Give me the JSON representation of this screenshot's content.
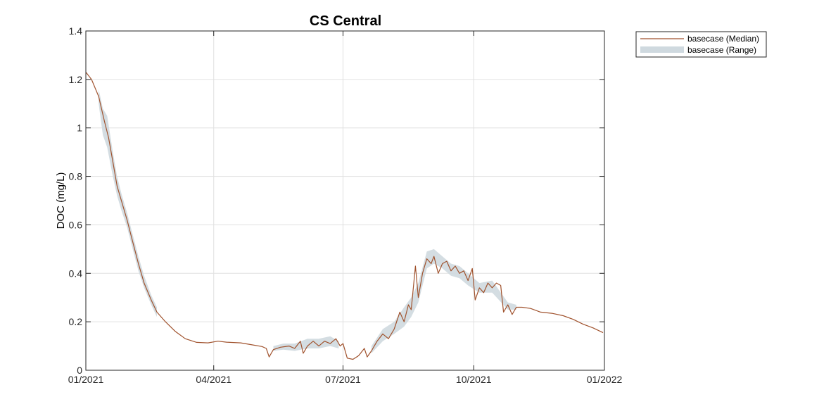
{
  "chart_data": {
    "type": "area",
    "title": "CS Central",
    "xlabel": "",
    "ylabel": "DOC (mg/L)",
    "xlim": [
      "2021-01-01",
      "2022-01-01"
    ],
    "ylim": [
      0,
      1.4
    ],
    "x_ticks": [
      "2021-01-01",
      "2021-04-01",
      "2021-07-01",
      "2021-10-01",
      "2022-01-01"
    ],
    "x_tick_labels": [
      "01/2021",
      "04/2021",
      "07/2021",
      "10/2021",
      "01/2022"
    ],
    "y_ticks": [
      0,
      0.2,
      0.4,
      0.6,
      0.8,
      1,
      1.2,
      1.4
    ],
    "y_tick_labels": [
      "0",
      "0.2",
      "0.4",
      "0.6",
      "0.8",
      "1",
      "1.2",
      "1.4"
    ],
    "grid": true,
    "legend_position": "outside-top-right",
    "colors": {
      "median": "#a0522d",
      "range": "#cfd9df",
      "grid": "#e0e0e0"
    },
    "series": [
      {
        "name": "basecase (Median)",
        "style": "line",
        "points": [
          [
            "2021-01-01",
            1.23
          ],
          [
            "2021-01-05",
            1.2
          ],
          [
            "2021-01-10",
            1.13
          ],
          [
            "2021-01-14",
            1.03
          ],
          [
            "2021-01-17",
            0.96
          ],
          [
            "2021-01-20",
            0.86
          ],
          [
            "2021-01-23",
            0.76
          ],
          [
            "2021-01-26",
            0.7
          ],
          [
            "2021-01-30",
            0.62
          ],
          [
            "2021-02-03",
            0.53
          ],
          [
            "2021-02-07",
            0.44
          ],
          [
            "2021-02-11",
            0.36
          ],
          [
            "2021-02-16",
            0.29
          ],
          [
            "2021-02-20",
            0.24
          ],
          [
            "2021-02-26",
            0.2
          ],
          [
            "2021-03-05",
            0.16
          ],
          [
            "2021-03-12",
            0.13
          ],
          [
            "2021-03-20",
            0.115
          ],
          [
            "2021-03-28",
            0.113
          ],
          [
            "2021-04-04",
            0.12
          ],
          [
            "2021-04-10",
            0.116
          ],
          [
            "2021-04-20",
            0.113
          ],
          [
            "2021-04-28",
            0.105
          ],
          [
            "2021-05-05",
            0.098
          ],
          [
            "2021-05-08",
            0.09
          ],
          [
            "2021-05-10",
            0.055
          ],
          [
            "2021-05-13",
            0.085
          ],
          [
            "2021-05-18",
            0.095
          ],
          [
            "2021-05-24",
            0.1
          ],
          [
            "2021-05-28",
            0.09
          ],
          [
            "2021-06-01",
            0.12
          ],
          [
            "2021-06-03",
            0.07
          ],
          [
            "2021-06-06",
            0.1
          ],
          [
            "2021-06-10",
            0.12
          ],
          [
            "2021-06-14",
            0.1
          ],
          [
            "2021-06-18",
            0.12
          ],
          [
            "2021-06-22",
            0.11
          ],
          [
            "2021-06-26",
            0.13
          ],
          [
            "2021-06-29",
            0.1
          ],
          [
            "2021-07-01",
            0.11
          ],
          [
            "2021-07-04",
            0.05
          ],
          [
            "2021-07-08",
            0.045
          ],
          [
            "2021-07-12",
            0.06
          ],
          [
            "2021-07-16",
            0.09
          ],
          [
            "2021-07-18",
            0.055
          ],
          [
            "2021-07-21",
            0.08
          ],
          [
            "2021-07-25",
            0.12
          ],
          [
            "2021-07-29",
            0.15
          ],
          [
            "2021-08-02",
            0.13
          ],
          [
            "2021-08-06",
            0.17
          ],
          [
            "2021-08-10",
            0.24
          ],
          [
            "2021-08-13",
            0.2
          ],
          [
            "2021-08-16",
            0.27
          ],
          [
            "2021-08-18",
            0.25
          ],
          [
            "2021-08-21",
            0.43
          ],
          [
            "2021-08-23",
            0.3
          ],
          [
            "2021-08-26",
            0.4
          ],
          [
            "2021-08-29",
            0.46
          ],
          [
            "2021-09-01",
            0.44
          ],
          [
            "2021-09-03",
            0.47
          ],
          [
            "2021-09-06",
            0.4
          ],
          [
            "2021-09-09",
            0.44
          ],
          [
            "2021-09-12",
            0.45
          ],
          [
            "2021-09-15",
            0.41
          ],
          [
            "2021-09-18",
            0.43
          ],
          [
            "2021-09-21",
            0.4
          ],
          [
            "2021-09-24",
            0.41
          ],
          [
            "2021-09-27",
            0.37
          ],
          [
            "2021-09-30",
            0.42
          ],
          [
            "2021-10-02",
            0.29
          ],
          [
            "2021-10-05",
            0.34
          ],
          [
            "2021-10-08",
            0.32
          ],
          [
            "2021-10-11",
            0.36
          ],
          [
            "2021-10-14",
            0.34
          ],
          [
            "2021-10-17",
            0.36
          ],
          [
            "2021-10-20",
            0.35
          ],
          [
            "2021-10-22",
            0.24
          ],
          [
            "2021-10-25",
            0.27
          ],
          [
            "2021-10-28",
            0.23
          ],
          [
            "2021-10-31",
            0.26
          ],
          [
            "2021-11-04",
            0.26
          ],
          [
            "2021-11-10",
            0.255
          ],
          [
            "2021-11-17",
            0.24
          ],
          [
            "2021-11-25",
            0.235
          ],
          [
            "2021-12-03",
            0.225
          ],
          [
            "2021-12-10",
            0.21
          ],
          [
            "2021-12-17",
            0.19
          ],
          [
            "2021-12-24",
            0.175
          ],
          [
            "2021-12-31",
            0.155
          ]
        ]
      },
      {
        "name": "basecase (Range)",
        "style": "band",
        "points": [
          [
            "2021-01-10",
            1.1,
            1.16
          ],
          [
            "2021-01-13",
            0.97,
            1.08
          ],
          [
            "2021-01-16",
            0.92,
            1.05
          ],
          [
            "2021-01-20",
            0.8,
            0.9
          ],
          [
            "2021-01-23",
            0.72,
            0.8
          ],
          [
            "2021-01-26",
            0.66,
            0.73
          ],
          [
            "2021-01-30",
            0.59,
            0.65
          ],
          [
            "2021-02-03",
            0.5,
            0.56
          ],
          [
            "2021-02-07",
            0.41,
            0.47
          ],
          [
            "2021-02-11",
            0.34,
            0.39
          ],
          [
            "2021-02-16",
            0.27,
            0.31
          ],
          [
            "2021-02-20",
            0.22,
            0.26
          ],
          [
            "2021-05-13",
            0.08,
            0.1
          ],
          [
            "2021-05-20",
            0.085,
            0.11
          ],
          [
            "2021-05-28",
            0.08,
            0.11
          ],
          [
            "2021-06-06",
            0.09,
            0.13
          ],
          [
            "2021-06-14",
            0.09,
            0.13
          ],
          [
            "2021-06-22",
            0.1,
            0.14
          ],
          [
            "2021-06-28",
            0.09,
            0.12
          ],
          [
            "2021-07-21",
            0.07,
            0.1
          ],
          [
            "2021-07-29",
            0.12,
            0.17
          ],
          [
            "2021-08-06",
            0.15,
            0.2
          ],
          [
            "2021-08-13",
            0.18,
            0.26
          ],
          [
            "2021-08-18",
            0.22,
            0.3
          ],
          [
            "2021-08-23",
            0.28,
            0.36
          ],
          [
            "2021-08-29",
            0.42,
            0.49
          ],
          [
            "2021-09-03",
            0.44,
            0.5
          ],
          [
            "2021-09-09",
            0.42,
            0.47
          ],
          [
            "2021-09-15",
            0.39,
            0.44
          ],
          [
            "2021-09-21",
            0.38,
            0.43
          ],
          [
            "2021-09-27",
            0.35,
            0.4
          ],
          [
            "2021-10-05",
            0.32,
            0.36
          ],
          [
            "2021-10-14",
            0.32,
            0.37
          ],
          [
            "2021-10-25",
            0.25,
            0.28
          ],
          [
            "2021-10-31",
            0.25,
            0.27
          ]
        ]
      }
    ]
  }
}
